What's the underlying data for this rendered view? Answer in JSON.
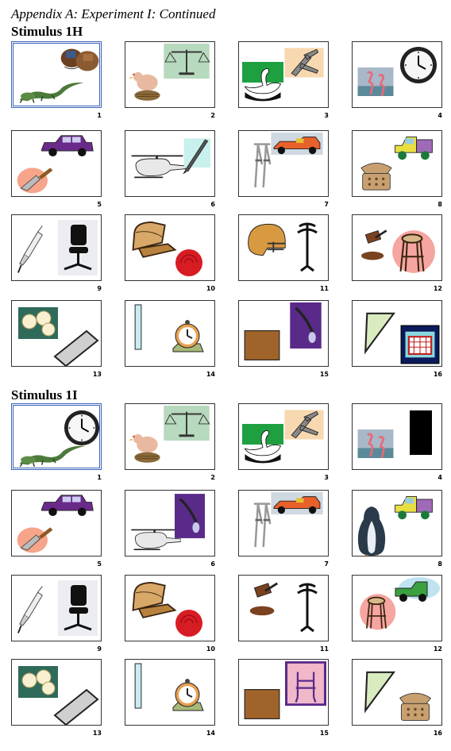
{
  "header": {
    "title": "Appendix A: Experiment I: Continued"
  },
  "sections": [
    {
      "title": "Stimulus 1H",
      "items": [
        {
          "number": "1",
          "pictures": [
            "boxing-gloves-icon",
            "iguana-icon"
          ]
        },
        {
          "number": "2",
          "pictures": [
            "hen-on-nest-icon",
            "scales-icon"
          ]
        },
        {
          "number": "3",
          "pictures": [
            "swan-icon",
            "pliers-icon"
          ]
        },
        {
          "number": "4",
          "pictures": [
            "flamingos-icon",
            "wall-clock-icon"
          ]
        },
        {
          "number": "5",
          "pictures": [
            "car-icon",
            "trowel-icon"
          ]
        },
        {
          "number": "6",
          "pictures": [
            "helicopter-icon",
            "fountain-pen-icon"
          ]
        },
        {
          "number": "7",
          "pictures": [
            "crutches-icon",
            "race-car-icon"
          ]
        },
        {
          "number": "8",
          "pictures": [
            "old-truck-icon",
            "telephone-icon"
          ]
        },
        {
          "number": "9",
          "pictures": [
            "syringe-icon",
            "office-chair-icon"
          ]
        },
        {
          "number": "10",
          "pictures": [
            "armchair-icon",
            "rose-icon"
          ]
        },
        {
          "number": "11",
          "pictures": [
            "football-helmet-icon",
            "coat-rack-icon"
          ]
        },
        {
          "number": "12",
          "pictures": [
            "gavel-icon",
            "stool-icon"
          ]
        },
        {
          "number": "13",
          "pictures": [
            "roses-icon",
            "grey-rectangle-icon"
          ]
        },
        {
          "number": "14",
          "pictures": [
            "thin-bar-icon",
            "alarm-clock-icon"
          ]
        },
        {
          "number": "15",
          "pictures": [
            "brown-square-icon",
            "purple-ink-icon"
          ]
        },
        {
          "number": "16",
          "pictures": [
            "triangle-icon",
            "goal-net-icon"
          ]
        }
      ]
    },
    {
      "title": "Stimulus 1I",
      "items": [
        {
          "number": "1",
          "pictures": [
            "wall-clock-icon",
            "iguana-icon"
          ]
        },
        {
          "number": "2",
          "pictures": [
            "hen-on-nest-icon",
            "scales-icon"
          ]
        },
        {
          "number": "3",
          "pictures": [
            "swan-icon",
            "pliers-icon"
          ]
        },
        {
          "number": "4",
          "pictures": [
            "flamingos-icon",
            "black-rectangle-icon"
          ]
        },
        {
          "number": "5",
          "pictures": [
            "car-icon",
            "trowel-icon"
          ]
        },
        {
          "number": "6",
          "pictures": [
            "helicopter-icon",
            "purple-ink-icon"
          ]
        },
        {
          "number": "7",
          "pictures": [
            "crutches-icon",
            "race-car-icon"
          ]
        },
        {
          "number": "8",
          "pictures": [
            "penguin-icon",
            "old-truck-icon"
          ]
        },
        {
          "number": "9",
          "pictures": [
            "syringe-icon",
            "office-chair-icon"
          ]
        },
        {
          "number": "10",
          "pictures": [
            "armchair-icon",
            "rose-icon"
          ]
        },
        {
          "number": "11",
          "pictures": [
            "gavel-icon",
            "coat-rack-icon"
          ]
        },
        {
          "number": "12",
          "pictures": [
            "stool-icon",
            "green-truck-icon"
          ]
        },
        {
          "number": "13",
          "pictures": [
            "roses-icon",
            "grey-rectangle-icon"
          ]
        },
        {
          "number": "14",
          "pictures": [
            "thin-bar-icon",
            "alarm-clock-icon"
          ]
        },
        {
          "number": "15",
          "pictures": [
            "brown-square-icon",
            "purple-chair-icon"
          ]
        },
        {
          "number": "16",
          "pictures": [
            "triangle-icon",
            "telephone-icon"
          ]
        }
      ]
    }
  ],
  "colors": {
    "selected_border": "#3b63b8",
    "cell_border": "#333333"
  }
}
